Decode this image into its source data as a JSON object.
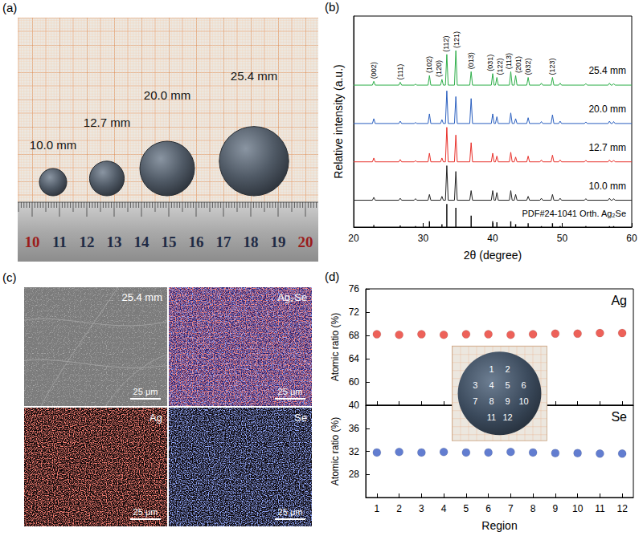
{
  "panel_a": {
    "label": "(a)",
    "samples": [
      {
        "label": "10.0 mm",
        "diameter_mm": 10.0
      },
      {
        "label": "12.7 mm",
        "diameter_mm": 12.7
      },
      {
        "label": "20.0 mm",
        "diameter_mm": 20.0
      },
      {
        "label": "25.4 mm",
        "diameter_mm": 25.4
      }
    ],
    "ruler_labels": [
      10,
      11,
      12,
      13,
      14,
      15,
      16,
      17,
      18,
      19,
      20
    ]
  },
  "chart_data": [
    {
      "label": "(b)",
      "type": "line",
      "xlabel": "2θ (degree)",
      "ylabel": "Relative intensity (a.u.)",
      "xlim": [
        20,
        60
      ],
      "xticks": [
        20,
        30,
        40,
        50,
        60
      ],
      "ylim": [
        0,
        110
      ],
      "tick_labels": "x",
      "x": [
        20,
        22.7,
        22.9,
        23.1,
        26.5,
        26.7,
        26.9,
        28.7,
        28.9,
        29.1,
        30.7,
        30.9,
        31.1,
        32.5,
        32.7,
        32.9,
        33.2,
        33.4,
        33.6,
        34.5,
        34.7,
        34.9,
        36.7,
        36.9,
        37.1,
        39.8,
        40.0,
        40.2,
        40.4,
        40.6,
        40.8,
        42.4,
        42.6,
        42.8,
        43.1,
        43.3,
        43.5,
        44.9,
        45.1,
        45.3,
        46.8,
        47.0,
        47.2,
        48.4,
        48.6,
        48.8,
        49.5,
        49.7,
        49.9,
        53.2,
        53.4,
        53.6,
        56.6,
        56.8,
        57.0,
        57.2,
        57.4,
        57.6,
        60
      ],
      "series": [
        {
          "name": "PDF#24-1041 Orth. Ag₂Se",
          "type": "bar",
          "color": "#000000",
          "x": [
            22.9,
            26.7,
            28.9,
            30.9,
            32.7,
            33.4,
            34.7,
            36.9,
            40.0,
            40.6,
            42.6,
            43.3,
            45.1,
            47.0,
            48.6,
            49.7,
            53.4,
            56.8,
            57.4
          ],
          "values": [
            1,
            0.8,
            0.5,
            3,
            1.5,
            12,
            10,
            6,
            3,
            2.5,
            3,
            1.5,
            2,
            0.5,
            2,
            0.5,
            0.5,
            0.5,
            0.5
          ]
        },
        {
          "name": "10.0 mm",
          "color": "#222222",
          "values": [
            14,
            14,
            15.5,
            14,
            14,
            15,
            14,
            14,
            14.8,
            14,
            14,
            17,
            14,
            14,
            16,
            14,
            14,
            32,
            14,
            14,
            29,
            14,
            14,
            19,
            14,
            14,
            19,
            14,
            14,
            18,
            14,
            14,
            19,
            14,
            14,
            17,
            14,
            14,
            16,
            14,
            14,
            15,
            14,
            14,
            17,
            14,
            14,
            15,
            14,
            14,
            14.8,
            14,
            14,
            15,
            14,
            14,
            14.8,
            14,
            14
          ]
        },
        {
          "name": "12.7 mm",
          "color": "#e8302a",
          "values": [
            34,
            34,
            36,
            34,
            34,
            35.2,
            34,
            34,
            34.6,
            34,
            34,
            38.5,
            34,
            34,
            36,
            34,
            34,
            52,
            34,
            34,
            48,
            34,
            34,
            44,
            34,
            34,
            38.5,
            34,
            34,
            37,
            34,
            34,
            39,
            34,
            34,
            36.5,
            34,
            34,
            37,
            34,
            34,
            35,
            34,
            34,
            37.5,
            34,
            34,
            35,
            34,
            34,
            34.8,
            34,
            34,
            35,
            34,
            34,
            34.8,
            34,
            34
          ]
        },
        {
          "name": "20.0 mm",
          "color": "#2a5fbf",
          "values": [
            54,
            54,
            56.5,
            54,
            54,
            55.2,
            54,
            54,
            54.5,
            54,
            54,
            59,
            54,
            54,
            56,
            54,
            54,
            71,
            54,
            54,
            68,
            54,
            54,
            67,
            54,
            54,
            59,
            54,
            54,
            57.5,
            54,
            54,
            59.5,
            54,
            54,
            56.5,
            54,
            54,
            57,
            54,
            54,
            55,
            54,
            54,
            58.5,
            54,
            54,
            55.2,
            54,
            54,
            54.8,
            54,
            54,
            55.2,
            54,
            54,
            55,
            54,
            54
          ]
        },
        {
          "name": "25.4 mm",
          "color": "#2fae4a",
          "values": [
            74,
            74,
            76,
            74,
            74,
            75.5,
            74,
            74,
            74.5,
            74,
            74,
            79,
            74,
            74,
            77,
            74,
            74,
            90,
            74,
            74,
            92,
            74,
            74,
            81,
            74,
            74,
            80,
            74,
            74,
            78,
            74,
            74,
            81,
            74,
            74,
            79,
            74,
            74,
            78,
            74,
            74,
            75,
            74,
            74,
            78,
            74,
            74,
            75,
            74,
            74,
            74.8,
            74,
            74,
            75,
            74,
            74,
            74.8,
            74,
            74
          ]
        }
      ],
      "peak_labels": [
        {
          "text": "(002)",
          "x": 22.9
        },
        {
          "text": "(111)",
          "x": 26.7
        },
        {
          "text": "(102)",
          "x": 30.9
        },
        {
          "text": "(120)",
          "x": 32.3
        },
        {
          "text": "(112)",
          "x": 33.3
        },
        {
          "text": "(121)",
          "x": 34.8
        },
        {
          "text": "(013)",
          "x": 36.9
        },
        {
          "text": "(031)",
          "x": 39.7
        },
        {
          "text": "(122)",
          "x": 41.0
        },
        {
          "text": "(113)",
          "x": 42.3
        },
        {
          "text": "(201)",
          "x": 43.7
        },
        {
          "text": "(032)",
          "x": 45.1
        },
        {
          "text": "(123)",
          "x": 48.6
        }
      ]
    },
    {
      "label": "(d)",
      "type": "scatter",
      "xlabel": "Region",
      "ylabel": "Atomic ratio (%)",
      "y2label": "Atomic ratio (%)",
      "x": [
        1,
        2,
        3,
        4,
        5,
        6,
        7,
        8,
        9,
        10,
        11,
        12
      ],
      "xlim": [
        0.5,
        12.5
      ],
      "xticks": [
        1,
        2,
        3,
        4,
        5,
        6,
        7,
        8,
        9,
        10,
        11,
        12
      ],
      "ylim": [
        56,
        76
      ],
      "yticks": [
        60,
        64,
        68,
        72,
        76
      ],
      "y2lim": [
        24,
        40
      ],
      "y2ticks": [
        28,
        32,
        36,
        40
      ],
      "marker": "circle",
      "series": [
        {
          "name": "Ag",
          "color": "#e8392f",
          "axis": "y",
          "values": [
            68.2,
            68.1,
            68.2,
            68.1,
            68.2,
            68.2,
            68.1,
            68.2,
            68.3,
            68.3,
            68.4,
            68.4
          ]
        },
        {
          "name": "Se",
          "color": "#3b5cc4",
          "axis": "y2",
          "values": [
            31.8,
            31.9,
            31.8,
            31.9,
            31.8,
            31.8,
            31.9,
            31.8,
            31.7,
            31.7,
            31.6,
            31.6
          ]
        }
      ],
      "inset": {
        "regions": [
          [
            1,
            2
          ],
          [
            3,
            4,
            5,
            6
          ],
          [
            7,
            8,
            9,
            10
          ],
          [
            11,
            12
          ]
        ]
      }
    }
  ],
  "panel_c": {
    "label": "(c)",
    "images": [
      {
        "title": "25.4 mm",
        "scale_bar": "25 μm"
      },
      {
        "title": "Ag₂Se",
        "scale_bar": "25 μm",
        "colors": [
          "#ff3b2f",
          "#4a66ff"
        ]
      },
      {
        "title": "Ag",
        "scale_bar": "25 μm",
        "color": "#ff3b2f"
      },
      {
        "title": "Se",
        "scale_bar": "25 μm",
        "color": "#4a66ff"
      }
    ]
  }
}
